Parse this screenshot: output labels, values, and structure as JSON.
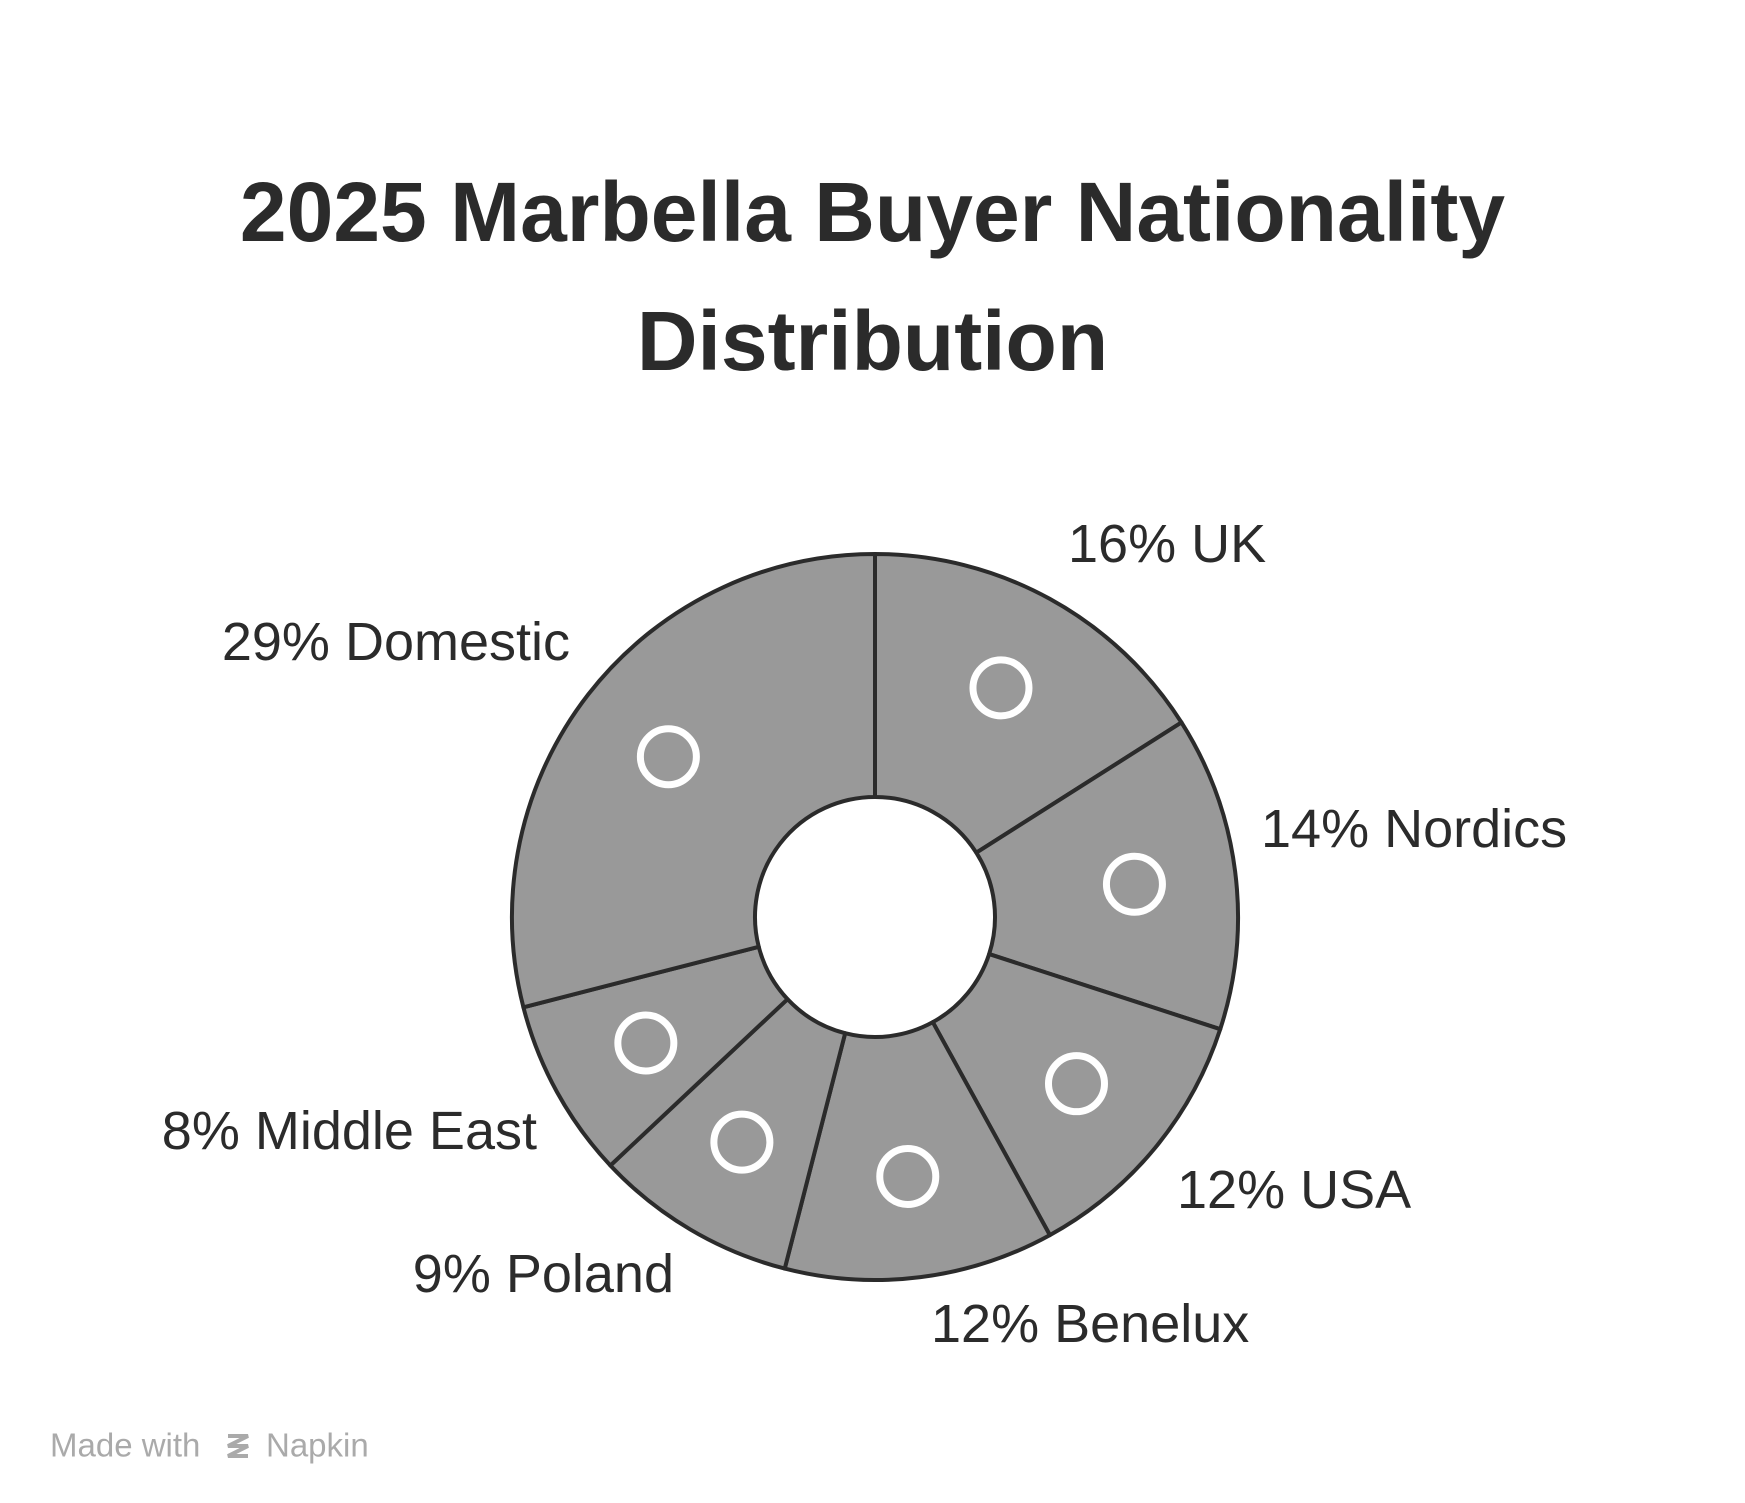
{
  "chart_data": {
    "type": "donut",
    "title": "2025 Marbella Buyer Nationality Distribution",
    "categories": [
      "UK",
      "Nordics",
      "USA",
      "Benelux",
      "Poland",
      "Middle East",
      "Domestic"
    ],
    "values": [
      16,
      14,
      12,
      12,
      9,
      8,
      29
    ],
    "value_labels": [
      "16%",
      "14%",
      "12%",
      "12%",
      "9%",
      "8%",
      "29%"
    ],
    "color": "#999999"
  },
  "footer": {
    "prefix": "Made with",
    "brand": "Napkin"
  }
}
